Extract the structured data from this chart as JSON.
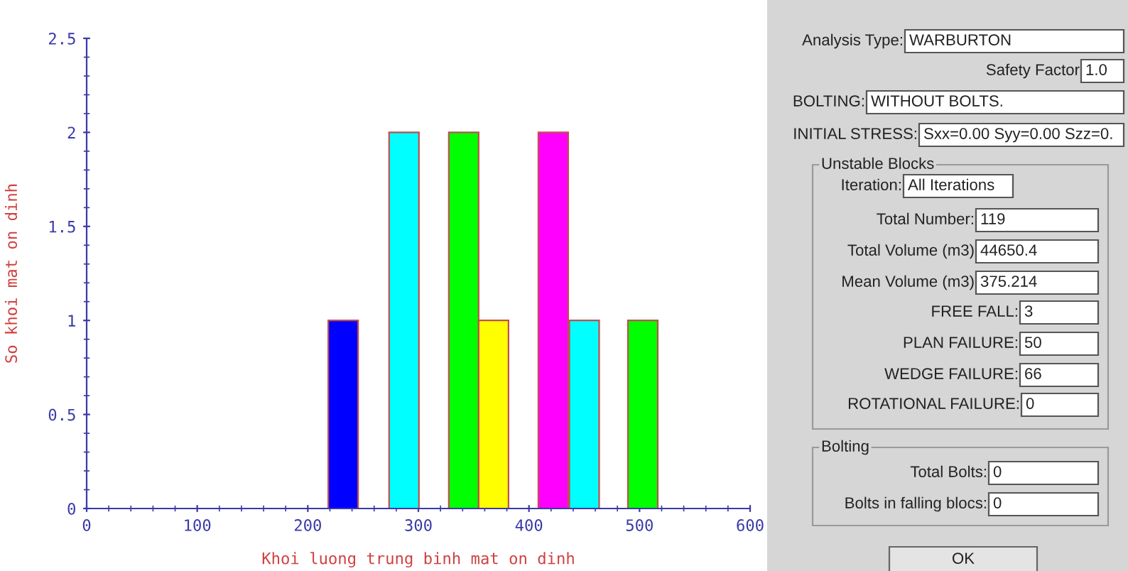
{
  "chart_data": [
    {
      "type": "bar",
      "xlabel": "Khoi luong trung binh mat on dinh",
      "ylabel": "So khoi mat on dinh",
      "x": [
        232,
        287,
        341,
        368,
        422,
        450,
        503
      ],
      "values": [
        1,
        2,
        2,
        1,
        2,
        1,
        1
      ],
      "colors": [
        "#0000ff",
        "#00ffff",
        "#00ff00",
        "#ffff00",
        "#ff00ff",
        "#00ffff",
        "#00ff00"
      ],
      "xlim": [
        0,
        600
      ],
      "xticks": [
        0,
        100,
        200,
        300,
        400,
        500,
        600
      ],
      "ylim": [
        0,
        2.5
      ],
      "yticks": [
        0,
        0.5,
        1,
        1.5,
        2,
        2.5
      ],
      "grid": false
    },
    {
      "type": "other",
      "annotations": [
        "Analysis Type:",
        "WARBURTON",
        "Safety Factor",
        "1.0",
        "BOLTING:",
        "WITHOUT BOLTS.",
        "INITIAL STRESS:",
        "Sxx=0.00 Syy=0.00 Szz=0.",
        "Unstable Blocks",
        "Iteration:",
        "All Iterations",
        "Total Number:",
        "119",
        "Total Volume (m3)",
        "44650.4",
        "Mean Volume (m3)",
        "375.214",
        "FREE FALL:",
        "3",
        "PLAN FAILURE:",
        "50",
        "WEDGE FAILURE:",
        "66",
        "ROTATIONAL FAILURE:",
        "0",
        "Bolting",
        "Total Bolts:",
        "0",
        "Bolts in falling blocs:",
        "0",
        "OK"
      ]
    }
  ]
}
